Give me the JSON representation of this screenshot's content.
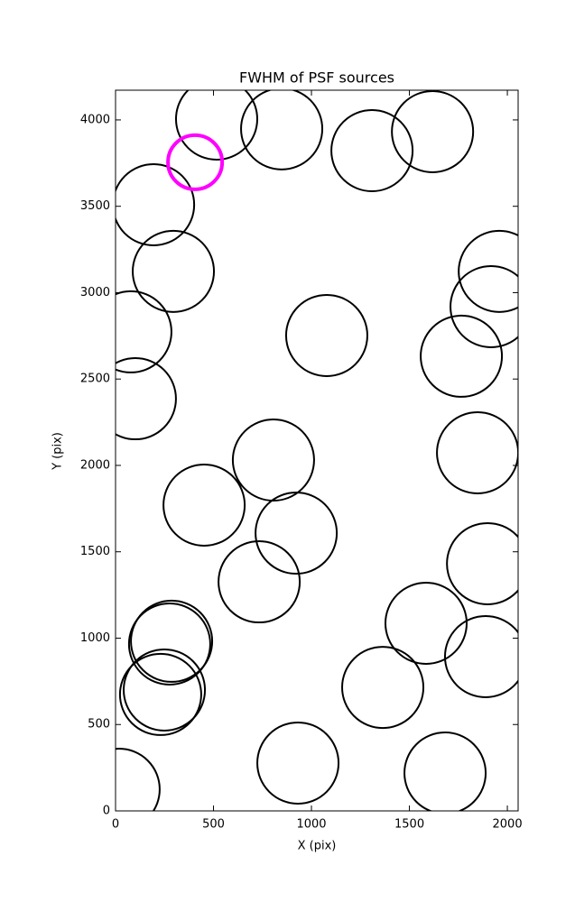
{
  "chart_data": {
    "type": "scatter",
    "title": "FWHM of PSF sources",
    "x_label": "X (pix)",
    "y_label": "Y (pix)",
    "xlim": [
      0,
      2055
    ],
    "ylim": [
      0,
      4172
    ],
    "xticks": [
      0,
      500,
      1000,
      1500,
      2000
    ],
    "yticks": [
      0,
      500,
      1000,
      1500,
      2000,
      2500,
      3000,
      3500,
      4000
    ],
    "series": [
      {
        "color": "#000000",
        "x": [
          516,
          848,
          1309,
          1618,
          194,
          295,
          78,
          1959,
          1917,
          1078,
          1765,
          101,
          806,
          1848,
          452,
          922,
          1899,
          733,
          1585,
          286,
          276,
          1889,
          249,
          230,
          1364,
          931,
          1682,
          18
        ],
        "values": [
          4005,
          3948,
          3822,
          3932,
          3509,
          3123,
          2773,
          3123,
          2919,
          2752,
          2632,
          2386,
          2031,
          2073,
          1770,
          1608,
          1431,
          1326,
          1086,
          982,
          966,
          893,
          700,
          674,
          715,
          277,
          219,
          125
        ]
      },
      {
        "color": "#ff00ff",
        "x": [
          406
        ],
        "values": [
          3755
        ]
      }
    ]
  }
}
